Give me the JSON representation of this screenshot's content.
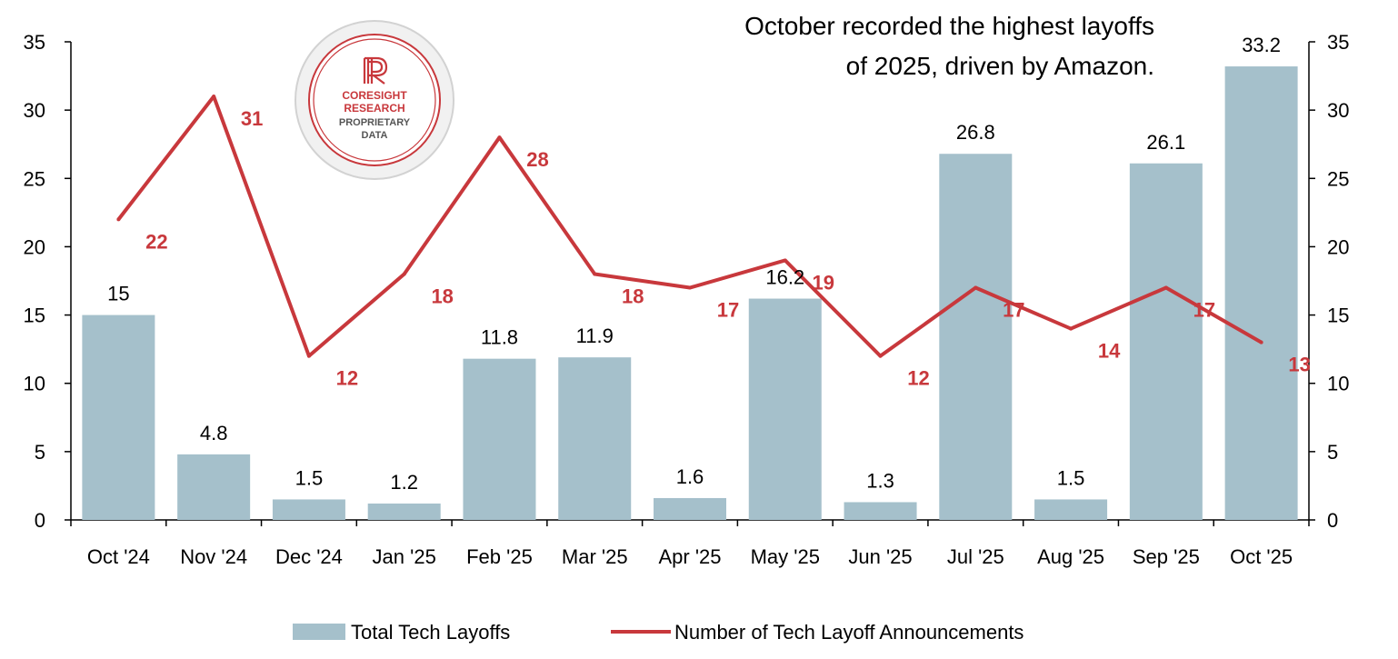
{
  "chart_data": {
    "type": "bar",
    "title_lines": [
      "October recorded the highest layoffs",
      "of 2025, driven by Amazon."
    ],
    "categories": [
      "Oct '24",
      "Nov '24",
      "Dec '24",
      "Jan '25",
      "Feb '25",
      "Mar '25",
      "Apr '25",
      "May '25",
      "Jun '25",
      "Jul '25",
      "Aug '25",
      "Sep '25",
      "Oct '25"
    ],
    "series": [
      {
        "name": "Total Tech Layoffs",
        "type": "bar",
        "axis": "left",
        "color": "#a5c0cb",
        "values": [
          15,
          4.8,
          1.5,
          1.2,
          11.8,
          11.9,
          1.6,
          16.2,
          1.3,
          26.8,
          1.5,
          26.1,
          33.2
        ]
      },
      {
        "name": "Number of Tech Layoff Announcements",
        "type": "line",
        "axis": "right",
        "color": "#c8383c",
        "values": [
          22,
          31,
          12,
          18,
          28,
          18,
          17,
          19,
          12,
          17,
          14,
          17,
          13
        ]
      }
    ],
    "y_left": {
      "min": 0,
      "max": 35,
      "ticks": [
        0,
        5,
        10,
        15,
        20,
        25,
        30,
        35
      ]
    },
    "y_right": {
      "min": 0,
      "max": 35,
      "ticks": [
        0,
        5,
        10,
        15,
        20,
        25,
        30,
        35
      ]
    },
    "grid": false,
    "legend_position": "bottom"
  },
  "seal": {
    "lines": [
      "CORESIGHT",
      "RESEARCH",
      "PROPRIETARY",
      "DATA"
    ],
    "accent_color": "#c8383c"
  }
}
